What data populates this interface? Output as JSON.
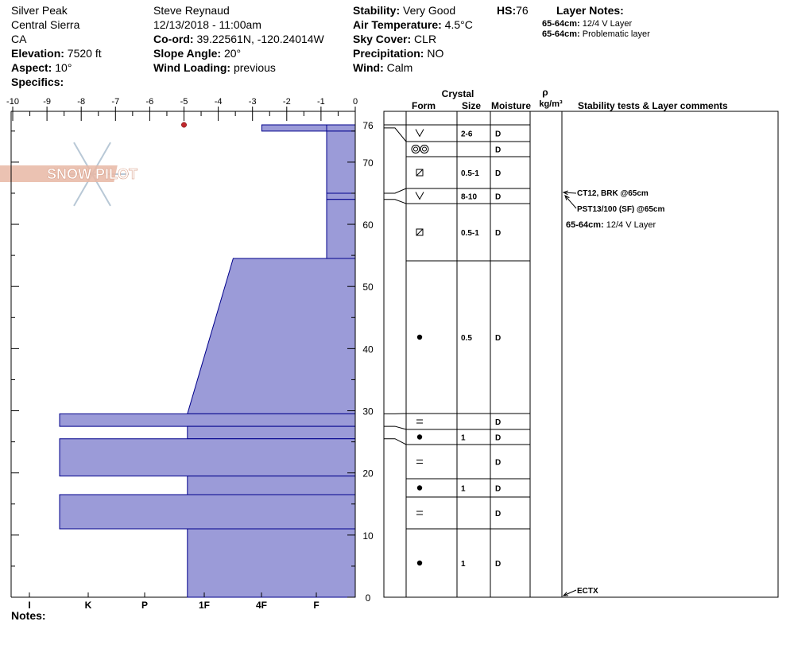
{
  "header": {
    "location": "Silver Peak",
    "region": "Central Sierra",
    "state": "CA",
    "elevation_label": "Elevation:",
    "elevation": "7520 ft",
    "aspect_label": "Aspect:",
    "aspect": "10°",
    "specifics_label": "Specifics:",
    "observer": "Steve Reynaud",
    "datetime": "12/13/2018 - 11:00am",
    "coord_label": "Co-ord:",
    "coord": "39.22561N, -120.24014W",
    "slope_label": "Slope Angle:",
    "slope": "20°",
    "wind_loading_label": "Wind Loading:",
    "wind_loading": "previous",
    "stability_label": "Stability:",
    "stability": "Very Good",
    "air_temp_label": "Air Temperature:",
    "air_temp": "4.5°C",
    "sky_label": "Sky Cover:",
    "sky": "CLR",
    "precip_label": "Precipitation:",
    "precip": "NO",
    "wind_label": "Wind:",
    "wind": "Calm",
    "hs_label": "HS:",
    "hs": "76",
    "layer_notes_title": "Layer Notes:",
    "layer_notes": [
      {
        "range": "65-64cm:",
        "text": "12/4 V Layer"
      },
      {
        "range": "65-64cm:",
        "text": "Problematic layer"
      }
    ]
  },
  "notes_label": "Notes:",
  "logo_text": "SNOW PILOT",
  "colors": {
    "fill": "#9b9bd8",
    "stroke": "#00008b",
    "temp": "#c0282d"
  },
  "chart_data": {
    "type": "bar",
    "temp_axis": {
      "ticks": [
        "-10",
        "-9",
        "-8",
        "-7",
        "-6",
        "-5",
        "-4",
        "-3",
        "-2",
        "-1",
        "0"
      ],
      "range": [
        -10,
        0
      ]
    },
    "height_axis": {
      "range": [
        0,
        76
      ],
      "ticks": [
        "0",
        "10",
        "20",
        "30",
        "40",
        "50",
        "60",
        "70",
        "76"
      ]
    },
    "hardness_axis": {
      "labels": [
        "I",
        "K",
        "P",
        "1F",
        "4F",
        "F"
      ]
    },
    "temperature_points": [
      {
        "height": 76,
        "temp": -5
      }
    ],
    "layers": [
      {
        "bottom": 75,
        "top": 76,
        "hardness_top": 0.49,
        "hardness_bottom": 0.49
      },
      {
        "bottom": 75,
        "top": 76,
        "hardness_top": 0.15,
        "hardness_bottom": 0.15
      },
      {
        "bottom": 65,
        "top": 75,
        "hardness_top": 0.15,
        "hardness_bottom": 0.15
      },
      {
        "bottom": 64,
        "top": 65,
        "hardness_top": 0.15,
        "hardness_bottom": 0.15
      },
      {
        "bottom": 54.5,
        "top": 64,
        "hardness_top": 0.15,
        "hardness_bottom": 0.15
      },
      {
        "bottom": 29.5,
        "top": 54.5,
        "hardness_top": 0.64,
        "hardness_bottom": 0.88
      },
      {
        "bottom": 27.5,
        "top": 29.5,
        "hardness_top": 1.55,
        "hardness_bottom": 1.55
      },
      {
        "bottom": 25.5,
        "top": 27.5,
        "hardness_top": 0.88,
        "hardness_bottom": 0.88
      },
      {
        "bottom": 19.5,
        "top": 25.5,
        "hardness_top": 1.55,
        "hardness_bottom": 1.55
      },
      {
        "bottom": 16.5,
        "top": 19.5,
        "hardness_top": 0.88,
        "hardness_bottom": 0.88
      },
      {
        "bottom": 11.0,
        "top": 16.5,
        "hardness_top": 1.55,
        "hardness_bottom": 1.55
      },
      {
        "bottom": 0,
        "top": 11.0,
        "hardness_top": 0.88,
        "hardness_bottom": 0.88
      }
    ],
    "table_headers": {
      "crystal": "Crystal",
      "form": "Form",
      "size": "Size",
      "moisture": "Moisture",
      "rho": "ρ",
      "density_unit": "kg/m³",
      "comments": "Stability tests & Layer comments"
    },
    "table_rows": [
      {
        "form": "facets-v",
        "size": "2-6",
        "moisture": "D"
      },
      {
        "form": "rounds-double",
        "size": "",
        "moisture": "D"
      },
      {
        "form": "faceted-square",
        "size": "0.5-1",
        "moisture": "D"
      },
      {
        "form": "facets-v",
        "size": "8-10",
        "moisture": "D"
      },
      {
        "form": "faceted-square",
        "size": "0.5-1",
        "moisture": "D"
      },
      {
        "form": "round-dot",
        "size": "0.5",
        "moisture": "D"
      },
      {
        "form": "crust-eq",
        "size": "",
        "moisture": "D"
      },
      {
        "form": "round-dot",
        "size": "1",
        "moisture": "D"
      },
      {
        "form": "crust-eq",
        "size": "",
        "moisture": "D"
      },
      {
        "form": "round-dot",
        "size": "1",
        "moisture": "D"
      },
      {
        "form": "crust-eq",
        "size": "",
        "moisture": "D"
      },
      {
        "form": "round-dot",
        "size": "1",
        "moisture": "D"
      }
    ],
    "comments": [
      {
        "text": "CT12, BRK @65cm"
      },
      {
        "text": "PST13/100 (SF) @65cm"
      },
      {
        "label": "65-64cm:",
        "text": "12/4 V Layer"
      },
      {
        "text": "ECTX"
      }
    ]
  }
}
